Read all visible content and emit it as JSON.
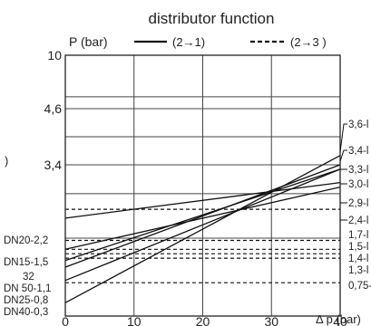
{
  "chart_data": {
    "type": "line",
    "title": "distributor function",
    "ylabel": "P (bar)",
    "xlabel": "Δ p (bar)",
    "xlim": [
      0,
      40
    ],
    "x_ticks": [
      "0",
      "10",
      "20",
      "30",
      "40"
    ],
    "y_ticks": [
      {
        "value": 3.4,
        "label": "3,4"
      },
      {
        "value": 4.6,
        "label": "4,6"
      },
      {
        "value": 10,
        "label": "10"
      }
    ],
    "grid": true,
    "legend": [
      {
        "label": "(2→1)",
        "style": "solid"
      },
      {
        "label": "(2→3 )",
        "style": "dashed"
      }
    ],
    "left_labels": [
      "DN20-2,2",
      "DN15-1,5",
      "32",
      "DN 50-1,1",
      "DN25-0,8",
      "DN40-0,3"
    ],
    "right_labels": [
      "3,6-l",
      "3,4-l",
      "3,3-l",
      "3,0-l",
      "2,9-l",
      "2,4-l",
      "1,7-l",
      "1,5-l",
      "1,4-l",
      "1,3-l",
      "0,75-l"
    ],
    "side_mark": ")",
    "series": [
      {
        "style": "solid",
        "x": [
          0,
          40
        ],
        "y": [
          2.2,
          3.0
        ]
      },
      {
        "style": "solid",
        "x": [
          0,
          40
        ],
        "y": [
          1.5,
          2.9
        ]
      },
      {
        "style": "solid",
        "x": [
          0,
          40
        ],
        "y": [
          1.25,
          3.3
        ]
      },
      {
        "style": "solid",
        "x": [
          0,
          40
        ],
        "y": [
          1.1,
          3.4
        ]
      },
      {
        "style": "solid",
        "x": [
          0,
          40
        ],
        "y": [
          0.8,
          3.3
        ]
      },
      {
        "style": "solid",
        "x": [
          0,
          40
        ],
        "y": [
          0.3,
          3.6
        ]
      },
      {
        "style": "dashed",
        "x": [
          0,
          40
        ],
        "y": [
          2.4,
          2.4
        ]
      },
      {
        "style": "dashed",
        "x": [
          0,
          40
        ],
        "y": [
          1.7,
          1.7
        ]
      },
      {
        "style": "dashed",
        "x": [
          0,
          40
        ],
        "y": [
          1.5,
          1.5
        ]
      },
      {
        "style": "dashed",
        "x": [
          0,
          40
        ],
        "y": [
          1.4,
          1.4
        ]
      },
      {
        "style": "dashed",
        "x": [
          0,
          40
        ],
        "y": [
          1.3,
          1.3
        ]
      },
      {
        "style": "dashed",
        "x": [
          0,
          40
        ],
        "y": [
          0.75,
          0.75
        ]
      }
    ]
  }
}
